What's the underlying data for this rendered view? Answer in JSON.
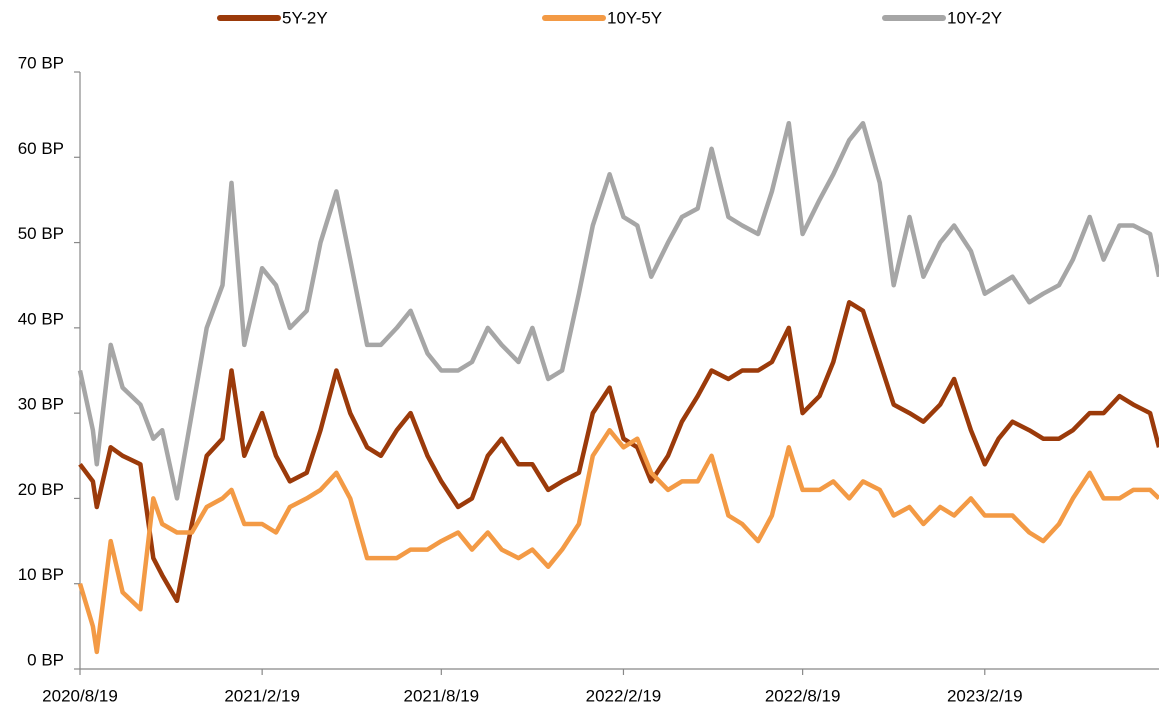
{
  "chart_data": {
    "type": "line",
    "x": [
      "2020/8/19",
      "2020/9/1",
      "2020/9/5",
      "2020/9/19",
      "2020/10/1",
      "2020/10/19",
      "2020/11/1",
      "2020/11/10",
      "2020/11/25",
      "2020/12/10",
      "2020/12/25",
      "2021/1/10",
      "2021/1/19",
      "2021/2/1",
      "2021/2/19",
      "2021/3/5",
      "2021/3/19",
      "2021/4/5",
      "2021/4/19",
      "2021/5/5",
      "2021/5/19",
      "2021/6/5",
      "2021/6/19",
      "2021/7/5",
      "2021/7/19",
      "2021/8/5",
      "2021/8/19",
      "2021/9/5",
      "2021/9/19",
      "2021/10/5",
      "2021/10/19",
      "2021/11/5",
      "2021/11/19",
      "2021/12/5",
      "2021/12/19",
      "2022/1/5",
      "2022/1/19",
      "2022/2/5",
      "2022/2/19",
      "2022/3/5",
      "2022/3/19",
      "2022/4/5",
      "2022/4/19",
      "2022/5/5",
      "2022/5/19",
      "2022/6/5",
      "2022/6/19",
      "2022/7/5",
      "2022/7/19",
      "2022/8/5",
      "2022/8/19",
      "2022/9/5",
      "2022/9/19",
      "2022/10/5",
      "2022/10/19",
      "2022/11/5",
      "2022/11/19",
      "2022/12/5",
      "2022/12/19",
      "2023/1/5",
      "2023/1/19",
      "2023/2/5",
      "2023/2/19",
      "2023/3/5",
      "2023/3/19",
      "2023/4/5",
      "2023/4/19",
      "2023/5/5",
      "2023/5/19",
      "2023/6/5",
      "2023/6/19",
      "2023/7/5",
      "2023/7/19",
      "2023/8/5",
      "2023/8/14"
    ],
    "series": [
      {
        "name": "5Y-2Y",
        "color": "#9b3a0a",
        "values": [
          24,
          22,
          19,
          26,
          25,
          24,
          13,
          11,
          8,
          17,
          25,
          27,
          35,
          25,
          30,
          25,
          22,
          23,
          28,
          35,
          30,
          26,
          25,
          28,
          30,
          25,
          22,
          19,
          20,
          25,
          27,
          24,
          24,
          21,
          22,
          23,
          30,
          33,
          27,
          26,
          22,
          25,
          29,
          32,
          35,
          34,
          35,
          35,
          36,
          40,
          30,
          32,
          36,
          43,
          42,
          36,
          31,
          30,
          29,
          31,
          34,
          28,
          24,
          27,
          29,
          28,
          27,
          27,
          28,
          30,
          30,
          32,
          31,
          30,
          26
        ]
      },
      {
        "name": "10Y-5Y",
        "color": "#f39a45",
        "values": [
          10,
          5,
          2,
          15,
          9,
          7,
          20,
          17,
          16,
          16,
          19,
          20,
          21,
          17,
          17,
          16,
          19,
          20,
          21,
          23,
          20,
          13,
          13,
          13,
          14,
          14,
          15,
          16,
          14,
          16,
          14,
          13,
          14,
          12,
          14,
          17,
          25,
          28,
          26,
          27,
          23,
          21,
          22,
          22,
          25,
          18,
          17,
          15,
          18,
          26,
          21,
          21,
          22,
          20,
          22,
          21,
          18,
          19,
          17,
          19,
          18,
          20,
          18,
          18,
          18,
          16,
          15,
          17,
          20,
          23,
          20,
          20,
          21,
          21,
          20
        ]
      },
      {
        "name": "10Y-2Y",
        "color": "#a6a6a6",
        "values": [
          35,
          28,
          24,
          38,
          33,
          31,
          27,
          28,
          20,
          30,
          40,
          45,
          57,
          38,
          47,
          45,
          40,
          42,
          50,
          56,
          48,
          38,
          38,
          40,
          42,
          37,
          35,
          35,
          36,
          40,
          38,
          36,
          40,
          34,
          35,
          44,
          52,
          58,
          53,
          52,
          46,
          50,
          53,
          54,
          61,
          53,
          52,
          51,
          56,
          64,
          51,
          55,
          58,
          62,
          64,
          57,
          45,
          53,
          46,
          50,
          52,
          49,
          44,
          45,
          46,
          43,
          44,
          45,
          48,
          53,
          48,
          52,
          52,
          51,
          46
        ]
      }
    ],
    "xlim": [
      "2020/8/19",
      "2023/8/14"
    ],
    "xticks": [
      "2020/8/19",
      "2021/2/19",
      "2021/8/19",
      "2022/2/19",
      "2022/8/19",
      "2023/2/19"
    ],
    "ylim": [
      0,
      70
    ],
    "yticks": [
      {
        "value": 0,
        "label": "0 BP"
      },
      {
        "value": 10,
        "label": "10 BP"
      },
      {
        "value": 20,
        "label": "20 BP"
      },
      {
        "value": 30,
        "label": "30 BP"
      },
      {
        "value": 40,
        "label": "40 BP"
      },
      {
        "value": 50,
        "label": "50 BP"
      },
      {
        "value": 60,
        "label": "60 BP"
      },
      {
        "value": 70,
        "label": "70 BP"
      }
    ],
    "legend": "top"
  }
}
